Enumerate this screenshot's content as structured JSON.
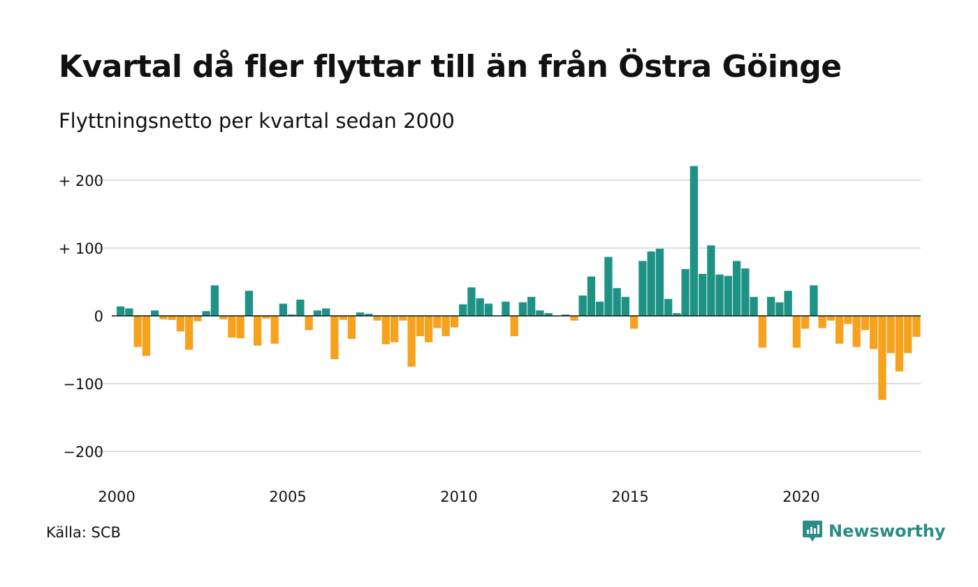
{
  "header": {
    "title": "Kvartal då fler flyttar till än från Östra Göinge",
    "subtitle": "Flyttningsnetto per kvartal sedan 2000"
  },
  "footer": {
    "source": "Källa: SCB",
    "brand": "Newsworthy"
  },
  "colors": {
    "positive": "#1f9286",
    "negative": "#f6a21e",
    "grid": "#dddddd",
    "axis": "#111111",
    "brand": "#2a8c87"
  },
  "chart_data": {
    "type": "bar",
    "x_start": "2000 Q1",
    "x_ticks": [
      "2000",
      "2005",
      "2010",
      "2015",
      "2020"
    ],
    "y_ticks": [
      "+ 200",
      "+ 100",
      "0",
      "−100",
      "−200"
    ],
    "y_tick_values": [
      200,
      100,
      0,
      -100,
      -200
    ],
    "ylim": [
      -240,
      220
    ],
    "values": [
      14,
      11,
      -46,
      -59,
      8,
      -5,
      -6,
      -23,
      -50,
      -8,
      7,
      45,
      -5,
      -32,
      -33,
      37,
      -44,
      -4,
      -41,
      18,
      2,
      24,
      -21,
      8,
      11,
      -64,
      -6,
      -34,
      5,
      3,
      -7,
      -42,
      -39,
      -7,
      -75,
      -30,
      -39,
      -18,
      -30,
      -17,
      17,
      42,
      26,
      18,
      0,
      21,
      -30,
      20,
      28,
      8,
      4,
      0,
      2,
      -7,
      30,
      58,
      21,
      87,
      41,
      28,
      -19,
      81,
      95,
      99,
      25,
      4,
      69,
      221,
      62,
      104,
      61,
      59,
      81,
      70,
      28,
      -47,
      28,
      20,
      37,
      -47,
      -19,
      45,
      -18,
      -7,
      -41,
      -12,
      -46,
      -21,
      -49,
      -124,
      -55,
      -82,
      -55,
      -31
    ]
  }
}
